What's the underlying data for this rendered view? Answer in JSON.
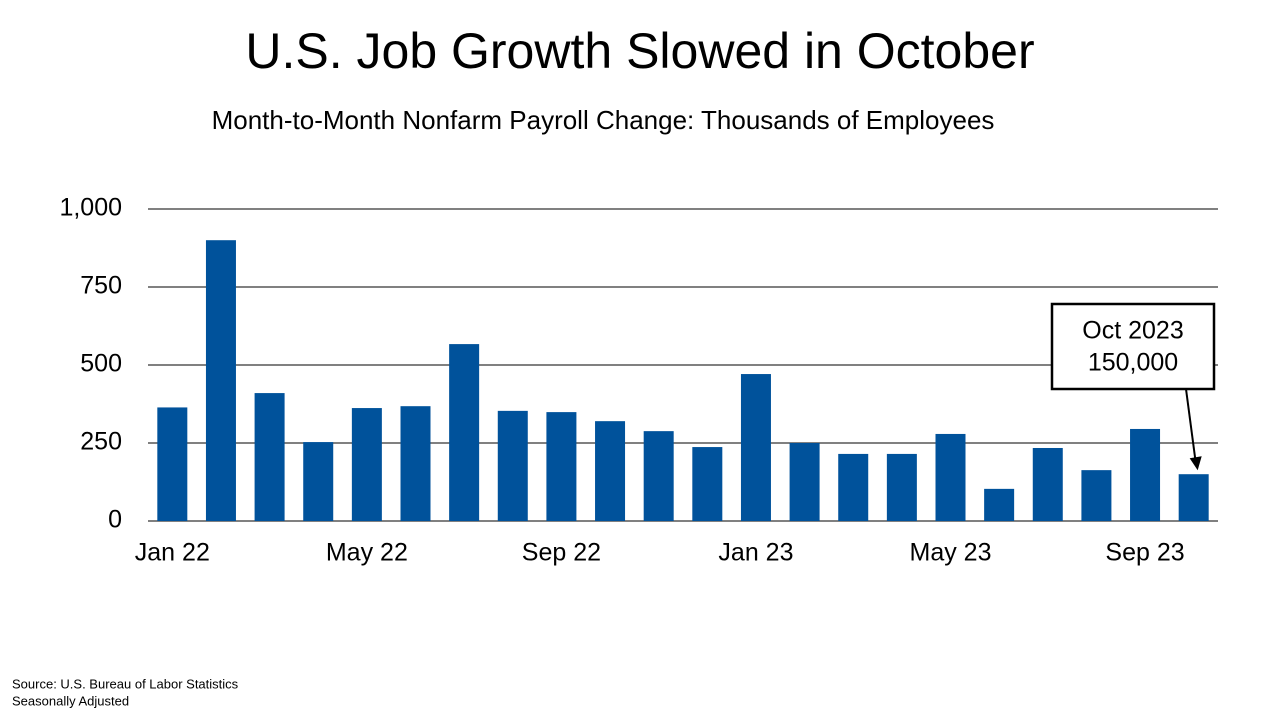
{
  "chart_data": {
    "type": "bar",
    "title": "U.S. Job Growth Slowed in October",
    "subtitle": "Month-to-Month Nonfarm Payroll Change: Thousands of Employees",
    "categories": [
      "Jan 22",
      null,
      null,
      null,
      "May 22",
      null,
      null,
      null,
      "Sep 22",
      null,
      null,
      null,
      "Jan 23",
      null,
      null,
      null,
      "May 23",
      null,
      null,
      null,
      "Sep 23",
      null
    ],
    "values": [
      364,
      900,
      410,
      253,
      362,
      368,
      567,
      353,
      349,
      320,
      288,
      237,
      471,
      250,
      215,
      215,
      279,
      103,
      234,
      163,
      295,
      150
    ],
    "color": "#00529b",
    "ylim": [
      0,
      1000
    ],
    "yticks": [
      0,
      250,
      500,
      750,
      {
        "value": 1000,
        "label": "1,000"
      }
    ],
    "grid": true,
    "annotation": {
      "lines": [
        "Oct 2023",
        "150,000"
      ],
      "index": 21
    },
    "notes": [
      "Source: U.S. Bureau of Labor Statistics",
      "Seasonally Adjusted"
    ]
  }
}
